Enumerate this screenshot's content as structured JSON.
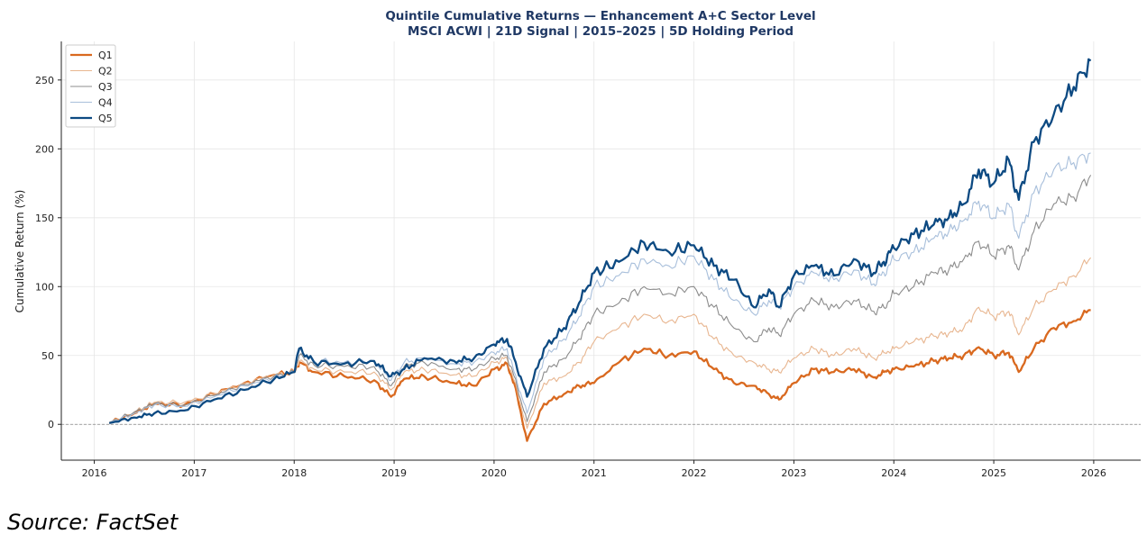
{
  "chart_data": {
    "type": "line",
    "title": "Quintile Cumulative Returns — Enhancement A+C Sector Level",
    "subtitle": "MSCI ACWI  |  21D Signal  |  2015–2025  |  5D Holding Period",
    "xlabel": "",
    "ylabel": "Cumulative Return (%)",
    "xlim": [
      2015.67,
      2026.47
    ],
    "ylim": [
      -26,
      278
    ],
    "xticks": [
      "2016",
      "2017",
      "2018",
      "2019",
      "2020",
      "2021",
      "2022",
      "2023",
      "2024",
      "2025",
      "2026"
    ],
    "yticks": [
      "0",
      "50",
      "100",
      "150",
      "200",
      "250"
    ],
    "grid": true,
    "legend_position": "top-left",
    "reference_line": 0,
    "x": [
      2016.15,
      2016.4,
      2016.6,
      2016.9,
      2017.2,
      2017.5,
      2017.8,
      2018.0,
      2018.05,
      2018.2,
      2018.5,
      2018.8,
      2018.97,
      2019.1,
      2019.3,
      2019.6,
      2019.8,
      2020.0,
      2020.13,
      2020.2,
      2020.33,
      2020.5,
      2020.7,
      2020.85,
      2021.0,
      2021.25,
      2021.5,
      2021.75,
      2022.0,
      2022.2,
      2022.4,
      2022.6,
      2022.75,
      2022.85,
      2023.0,
      2023.2,
      2023.4,
      2023.6,
      2023.8,
      2023.9,
      2024.0,
      2024.2,
      2024.4,
      2024.55,
      2024.7,
      2024.85,
      2025.0,
      2025.15,
      2025.25,
      2025.4,
      2025.6,
      2025.8,
      2025.97
    ],
    "series": [
      {
        "name": "Q1",
        "color": "#d9691f",
        "width": 2.3,
        "values": [
          1,
          8,
          15,
          14,
          22,
          30,
          36,
          38,
          45,
          38,
          35,
          32,
          20,
          33,
          35,
          30,
          28,
          40,
          44,
          30,
          -12,
          15,
          22,
          28,
          30,
          45,
          55,
          50,
          53,
          40,
          30,
          28,
          22,
          18,
          30,
          40,
          38,
          40,
          34,
          38,
          40,
          42,
          46,
          48,
          50,
          56,
          50,
          52,
          38,
          55,
          70,
          75,
          83
        ]
      },
      {
        "name": "Q2",
        "color": "#e8b690",
        "width": 1.1,
        "values": [
          1,
          9,
          16,
          16,
          22,
          30,
          36,
          38,
          46,
          40,
          38,
          38,
          25,
          38,
          40,
          36,
          35,
          45,
          48,
          32,
          -3,
          30,
          35,
          45,
          60,
          70,
          80,
          75,
          80,
          62,
          50,
          45,
          40,
          38,
          48,
          55,
          50,
          55,
          48,
          52,
          55,
          60,
          64,
          66,
          70,
          85,
          78,
          82,
          65,
          85,
          98,
          108,
          121
        ]
      },
      {
        "name": "Q3",
        "color": "#8c8c8c",
        "width": 1.1,
        "values": [
          1,
          9,
          15,
          14,
          21,
          29,
          35,
          38,
          50,
          43,
          42,
          42,
          28,
          42,
          45,
          40,
          40,
          48,
          50,
          35,
          2,
          38,
          48,
          62,
          80,
          88,
          100,
          95,
          100,
          85,
          70,
          60,
          70,
          65,
          80,
          90,
          85,
          90,
          82,
          85,
          95,
          100,
          110,
          112,
          120,
          133,
          122,
          130,
          112,
          140,
          160,
          165,
          181
        ]
      },
      {
        "name": "Q4",
        "color": "#a8bfdb",
        "width": 1.1,
        "values": [
          1,
          8,
          14,
          13,
          20,
          28,
          34,
          38,
          53,
          46,
          45,
          46,
          32,
          45,
          48,
          44,
          45,
          52,
          55,
          38,
          8,
          48,
          62,
          78,
          100,
          108,
          120,
          115,
          122,
          105,
          90,
          80,
          90,
          85,
          100,
          110,
          105,
          112,
          102,
          110,
          120,
          125,
          135,
          140,
          148,
          162,
          150,
          160,
          135,
          168,
          185,
          190,
          197
        ]
      },
      {
        "name": "Q5",
        "color": "#0d4a82",
        "width": 2.3,
        "values": [
          1,
          5,
          8,
          10,
          18,
          25,
          33,
          38,
          55,
          45,
          44,
          46,
          35,
          40,
          48,
          46,
          48,
          58,
          62,
          48,
          20,
          55,
          70,
          88,
          110,
          118,
          132,
          125,
          130,
          115,
          105,
          85,
          98,
          85,
          108,
          115,
          108,
          120,
          110,
          118,
          128,
          138,
          145,
          150,
          160,
          185,
          175,
          192,
          163,
          205,
          225,
          245,
          264
        ]
      }
    ]
  },
  "source_note": "Source: FactSet"
}
